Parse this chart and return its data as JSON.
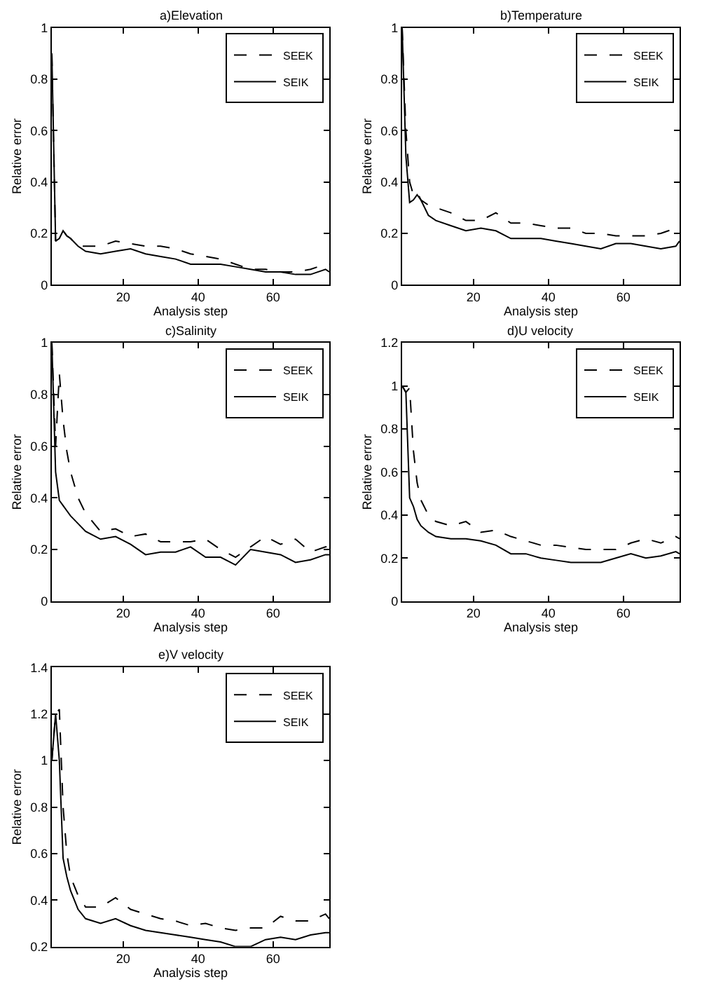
{
  "chart_data": [
    {
      "type": "line",
      "title": "a)Elevation",
      "xlabel": "Analysis step",
      "ylabel": "Relative error",
      "x": [
        1,
        2,
        3,
        4,
        5,
        6,
        8,
        10,
        14,
        18,
        22,
        26,
        30,
        34,
        38,
        42,
        46,
        50,
        54,
        58,
        62,
        66,
        70,
        74,
        75
      ],
      "xlim": [
        1,
        75
      ],
      "xticks": [
        20,
        40,
        60
      ],
      "ylim": [
        0,
        1
      ],
      "yticks": [
        0,
        0.2,
        0.4,
        0.6,
        0.8,
        1
      ],
      "legend": "top right",
      "series": [
        {
          "name": "SEEK",
          "color": "#000000",
          "line_style": "dashed",
          "values": [
            0.9,
            0.17,
            0.18,
            0.21,
            0.19,
            0.18,
            0.15,
            0.15,
            0.15,
            0.17,
            0.16,
            0.15,
            0.15,
            0.14,
            0.12,
            0.11,
            0.1,
            0.08,
            0.06,
            0.06,
            0.05,
            0.05,
            0.06,
            0.08,
            0.08
          ]
        },
        {
          "name": "SEIK",
          "color": "#000000",
          "line_style": "solid",
          "values": [
            0.9,
            0.17,
            0.18,
            0.21,
            0.19,
            0.18,
            0.15,
            0.13,
            0.12,
            0.13,
            0.14,
            0.12,
            0.11,
            0.1,
            0.08,
            0.08,
            0.08,
            0.07,
            0.06,
            0.05,
            0.05,
            0.04,
            0.04,
            0.06,
            0.05
          ]
        }
      ]
    },
    {
      "type": "line",
      "title": "b)Temperature",
      "xlabel": "Analysis step",
      "ylabel": "Relative error",
      "x": [
        1,
        2,
        3,
        4,
        5,
        6,
        8,
        10,
        14,
        18,
        22,
        26,
        30,
        34,
        38,
        42,
        46,
        50,
        54,
        58,
        62,
        66,
        70,
        74,
        75
      ],
      "xlim": [
        1,
        75
      ],
      "xticks": [
        20,
        40,
        60
      ],
      "ylim": [
        0,
        1
      ],
      "yticks": [
        0,
        0.2,
        0.4,
        0.6,
        0.8,
        1
      ],
      "legend": "top right",
      "series": [
        {
          "name": "SEEK",
          "color": "#000000",
          "line_style": "dashed",
          "values": [
            1.0,
            0.6,
            0.4,
            0.35,
            0.36,
            0.33,
            0.31,
            0.3,
            0.28,
            0.25,
            0.25,
            0.28,
            0.24,
            0.24,
            0.23,
            0.22,
            0.22,
            0.2,
            0.2,
            0.19,
            0.19,
            0.19,
            0.2,
            0.22,
            0.23
          ]
        },
        {
          "name": "SEIK",
          "color": "#000000",
          "line_style": "solid",
          "values": [
            1.0,
            0.5,
            0.32,
            0.33,
            0.35,
            0.33,
            0.27,
            0.25,
            0.23,
            0.21,
            0.22,
            0.21,
            0.18,
            0.18,
            0.18,
            0.17,
            0.16,
            0.15,
            0.14,
            0.16,
            0.16,
            0.15,
            0.14,
            0.15,
            0.17
          ]
        }
      ]
    },
    {
      "type": "line",
      "title": "c)Salinity",
      "xlabel": "Analysis step",
      "ylabel": "Relative error",
      "x": [
        1,
        2,
        3,
        4,
        5,
        6,
        8,
        10,
        14,
        18,
        22,
        26,
        30,
        34,
        38,
        42,
        46,
        50,
        54,
        58,
        62,
        66,
        70,
        74,
        75
      ],
      "xlim": [
        1,
        75
      ],
      "xticks": [
        20,
        40,
        60
      ],
      "ylim": [
        0,
        1
      ],
      "yticks": [
        0,
        0.2,
        0.4,
        0.6,
        0.8,
        1
      ],
      "legend": "top right",
      "series": [
        {
          "name": "SEEK",
          "color": "#000000",
          "line_style": "dashed",
          "values": [
            1.0,
            0.6,
            0.88,
            0.7,
            0.58,
            0.5,
            0.4,
            0.34,
            0.27,
            0.28,
            0.25,
            0.26,
            0.23,
            0.23,
            0.23,
            0.24,
            0.2,
            0.17,
            0.21,
            0.25,
            0.22,
            0.24,
            0.19,
            0.21,
            0.21
          ]
        },
        {
          "name": "SEIK",
          "color": "#000000",
          "line_style": "solid",
          "values": [
            1.0,
            0.5,
            0.39,
            0.37,
            0.35,
            0.33,
            0.3,
            0.27,
            0.24,
            0.25,
            0.22,
            0.18,
            0.19,
            0.19,
            0.21,
            0.17,
            0.17,
            0.14,
            0.2,
            0.19,
            0.18,
            0.15,
            0.16,
            0.18,
            0.18
          ]
        }
      ]
    },
    {
      "type": "line",
      "title": "d)U velocity",
      "xlabel": "Analysis step",
      "ylabel": "Relative error",
      "x": [
        1,
        2,
        3,
        4,
        5,
        6,
        8,
        10,
        14,
        18,
        22,
        26,
        30,
        34,
        38,
        42,
        46,
        50,
        54,
        58,
        62,
        66,
        70,
        74,
        75
      ],
      "xlim": [
        1,
        75
      ],
      "xticks": [
        20,
        40,
        60
      ],
      "ylim": [
        0,
        1.2
      ],
      "yticks": [
        0,
        0.2,
        0.4,
        0.6,
        0.8,
        1,
        1.2
      ],
      "legend": "top right",
      "series": [
        {
          "name": "SEEK",
          "color": "#000000",
          "line_style": "dashed",
          "values": [
            1.0,
            0.97,
            0.99,
            0.7,
            0.55,
            0.47,
            0.4,
            0.37,
            0.35,
            0.37,
            0.32,
            0.33,
            0.3,
            0.28,
            0.26,
            0.26,
            0.25,
            0.24,
            0.24,
            0.24,
            0.27,
            0.29,
            0.27,
            0.3,
            0.29
          ]
        },
        {
          "name": "SEIK",
          "color": "#000000",
          "line_style": "solid",
          "values": [
            1.0,
            0.97,
            0.48,
            0.44,
            0.38,
            0.35,
            0.32,
            0.3,
            0.29,
            0.29,
            0.28,
            0.26,
            0.22,
            0.22,
            0.2,
            0.19,
            0.18,
            0.18,
            0.18,
            0.2,
            0.22,
            0.2,
            0.21,
            0.23,
            0.22
          ]
        }
      ]
    },
    {
      "type": "line",
      "title": "e)V velocity",
      "xlabel": "Analysis step",
      "ylabel": "Relative error",
      "x": [
        1,
        2,
        3,
        4,
        5,
        6,
        8,
        10,
        14,
        18,
        22,
        26,
        30,
        34,
        38,
        42,
        46,
        50,
        54,
        58,
        62,
        66,
        70,
        74,
        75
      ],
      "xlim": [
        1,
        75
      ],
      "xticks": [
        20,
        40,
        60
      ],
      "ylim": [
        0.2,
        1.4
      ],
      "yticks": [
        0.2,
        0.4,
        0.6,
        0.8,
        1,
        1.2,
        1.4
      ],
      "legend": "top right",
      "series": [
        {
          "name": "SEEK",
          "color": "#000000",
          "line_style": "dashed",
          "values": [
            1.0,
            1.2,
            1.22,
            0.8,
            0.6,
            0.5,
            0.42,
            0.37,
            0.37,
            0.41,
            0.36,
            0.34,
            0.32,
            0.31,
            0.29,
            0.3,
            0.28,
            0.27,
            0.28,
            0.28,
            0.33,
            0.31,
            0.31,
            0.34,
            0.32
          ]
        },
        {
          "name": "SEIK",
          "color": "#000000",
          "line_style": "solid",
          "values": [
            1.0,
            1.2,
            1.0,
            0.58,
            0.5,
            0.44,
            0.36,
            0.32,
            0.3,
            0.32,
            0.29,
            0.27,
            0.26,
            0.25,
            0.24,
            0.23,
            0.22,
            0.2,
            0.2,
            0.23,
            0.24,
            0.23,
            0.25,
            0.26,
            0.26
          ]
        }
      ]
    }
  ]
}
